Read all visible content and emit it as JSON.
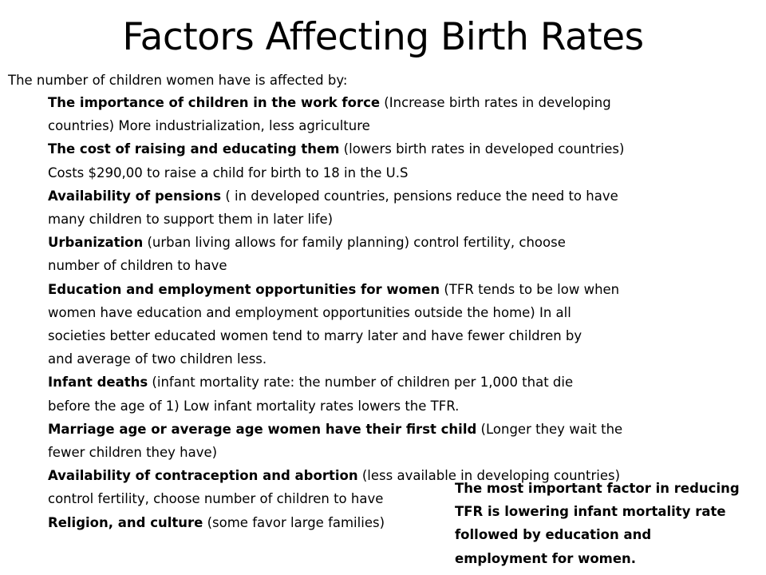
{
  "slide": {
    "title": "Factors Affecting Birth Rates",
    "intro": "The number of children women have is affected by:",
    "factors": [
      {
        "lines": [
          {
            "bold": "The importance of children in the work force",
            "text": " (Increase birth rates in developing"
          },
          {
            "bold": "",
            "text": "countries) More industrialization, less agriculture"
          }
        ]
      },
      {
        "lines": [
          {
            "bold": "The cost of raising and educating them",
            "text": " (lowers birth rates in developed countries)"
          },
          {
            "bold": "",
            "text": "Costs $290,00 to raise a child for birth to 18 in the U.S"
          }
        ]
      },
      {
        "lines": [
          {
            "bold": "Availability of pensions",
            "text": " ( in developed countries, pensions reduce the need to have"
          },
          {
            "bold": "",
            "text": "many children to support them in later life)"
          }
        ]
      },
      {
        "lines": [
          {
            "bold": "Urbanization",
            "text": " (urban living allows for family planning) control fertility, choose"
          },
          {
            "bold": "",
            "text": "number of children to have"
          }
        ]
      },
      {
        "lines": [
          {
            "bold": "Education and employment opportunities for women",
            "text": " (TFR tends to be low when"
          },
          {
            "bold": "",
            "text": "women have education and employment opportunities outside the home) In all"
          },
          {
            "bold": "",
            "text": "societies better educated women tend to marry later and have fewer children by"
          },
          {
            "bold": "",
            "text": "and average of two children less."
          }
        ]
      },
      {
        "lines": [
          {
            "bold": "Infant deaths",
            "text": " (infant mortality rate: the number of children per 1,000 that die"
          },
          {
            "bold": "",
            "text": "before the age of 1) Low infant mortality rates lowers the TFR."
          }
        ]
      },
      {
        "lines": [
          {
            "bold": "Marriage age or average age women have their first child",
            "text": " (Longer they wait the"
          },
          {
            "bold": "",
            "text": "fewer children they have)"
          }
        ]
      },
      {
        "lines": [
          {
            "bold": "Availability of contraception and abortion",
            "text": " (less available in developing countries)"
          },
          {
            "bold": "",
            "text": "control fertility, choose number of children to have"
          }
        ]
      },
      {
        "lines": [
          {
            "bold": "Religion, and culture",
            "text": " (some favor large families)"
          }
        ]
      }
    ],
    "callout": [
      "The most important factor in reducing",
      "TFR is lowering infant mortality rate",
      "followed by education and",
      "employment for women."
    ]
  }
}
